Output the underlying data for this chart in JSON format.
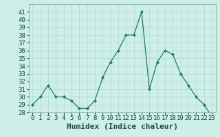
{
  "x": [
    0,
    1,
    2,
    3,
    4,
    5,
    6,
    7,
    8,
    9,
    10,
    11,
    12,
    13,
    14,
    15,
    16,
    17,
    18,
    19,
    20,
    21,
    22,
    23
  ],
  "y": [
    29.0,
    30.0,
    31.5,
    30.0,
    30.0,
    29.5,
    28.5,
    28.5,
    29.5,
    32.5,
    34.5,
    36.0,
    38.0,
    38.0,
    41.0,
    31.0,
    34.5,
    36.0,
    35.5,
    33.0,
    31.5,
    30.0,
    29.0,
    27.5
  ],
  "xlabel": "Humidex (Indice chaleur)",
  "ylim": [
    28,
    42
  ],
  "xlim": [
    -0.5,
    23.5
  ],
  "yticks": [
    28,
    29,
    30,
    31,
    32,
    33,
    34,
    35,
    36,
    37,
    38,
    39,
    40,
    41
  ],
  "xticks": [
    0,
    1,
    2,
    3,
    4,
    5,
    6,
    7,
    8,
    9,
    10,
    11,
    12,
    13,
    14,
    15,
    16,
    17,
    18,
    19,
    20,
    21,
    22,
    23
  ],
  "line_color": "#1a7a6a",
  "marker_color": "#1a7a6a",
  "bg_color": "#ceeee8",
  "grid_color": "#b0d8d0",
  "tick_fontsize": 6.5,
  "xlabel_fontsize": 8
}
